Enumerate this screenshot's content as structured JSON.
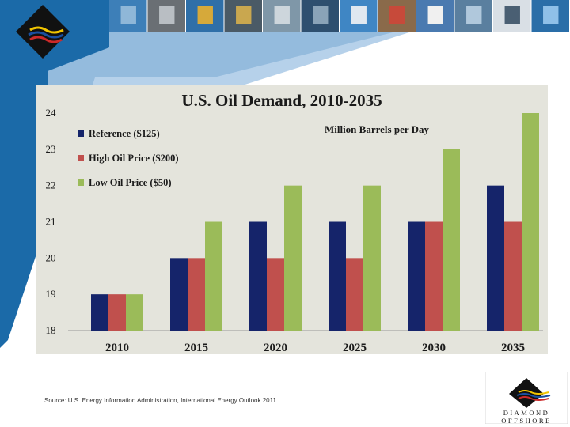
{
  "theme": {
    "slide_blue": "#1b6aa8",
    "slide_light_blue": "#a9c9e6",
    "chart_bg": "#e4e4dc",
    "logo_dark": "#111111"
  },
  "source_note": "Source: U.S. Energy Information Administration, International Energy Outlook 2011",
  "logo": {
    "icon": "diamond-offshore-logo",
    "wordmark_line1": "DIAMOND",
    "wordmark_line2": "OFFSHORE"
  },
  "photo_strip": {
    "icon": "offshore-rig-photo-strip",
    "count": 12
  },
  "chart_data": {
    "type": "bar",
    "title": "U.S. Oil Demand, 2010-2035",
    "annotation": "Million Barrels per Day",
    "xlabel": "",
    "ylabel": "",
    "categories": [
      "2010",
      "2015",
      "2020",
      "2025",
      "2030",
      "2035"
    ],
    "ylim": [
      18,
      24
    ],
    "yticks": [
      18,
      19,
      20,
      21,
      22,
      23,
      24
    ],
    "legend_position": "top-left",
    "grid": false,
    "series": [
      {
        "name": "Reference ($125)",
        "color": "#15246a",
        "values": [
          19,
          20,
          21,
          21,
          21,
          22
        ]
      },
      {
        "name": "High Oil Price ($200)",
        "color": "#c0504d",
        "values": [
          19,
          20,
          20,
          20,
          21,
          21
        ]
      },
      {
        "name": "Low Oil Price ($50)",
        "color": "#9bbb59",
        "values": [
          19,
          21,
          22,
          22,
          23,
          24
        ]
      }
    ]
  }
}
